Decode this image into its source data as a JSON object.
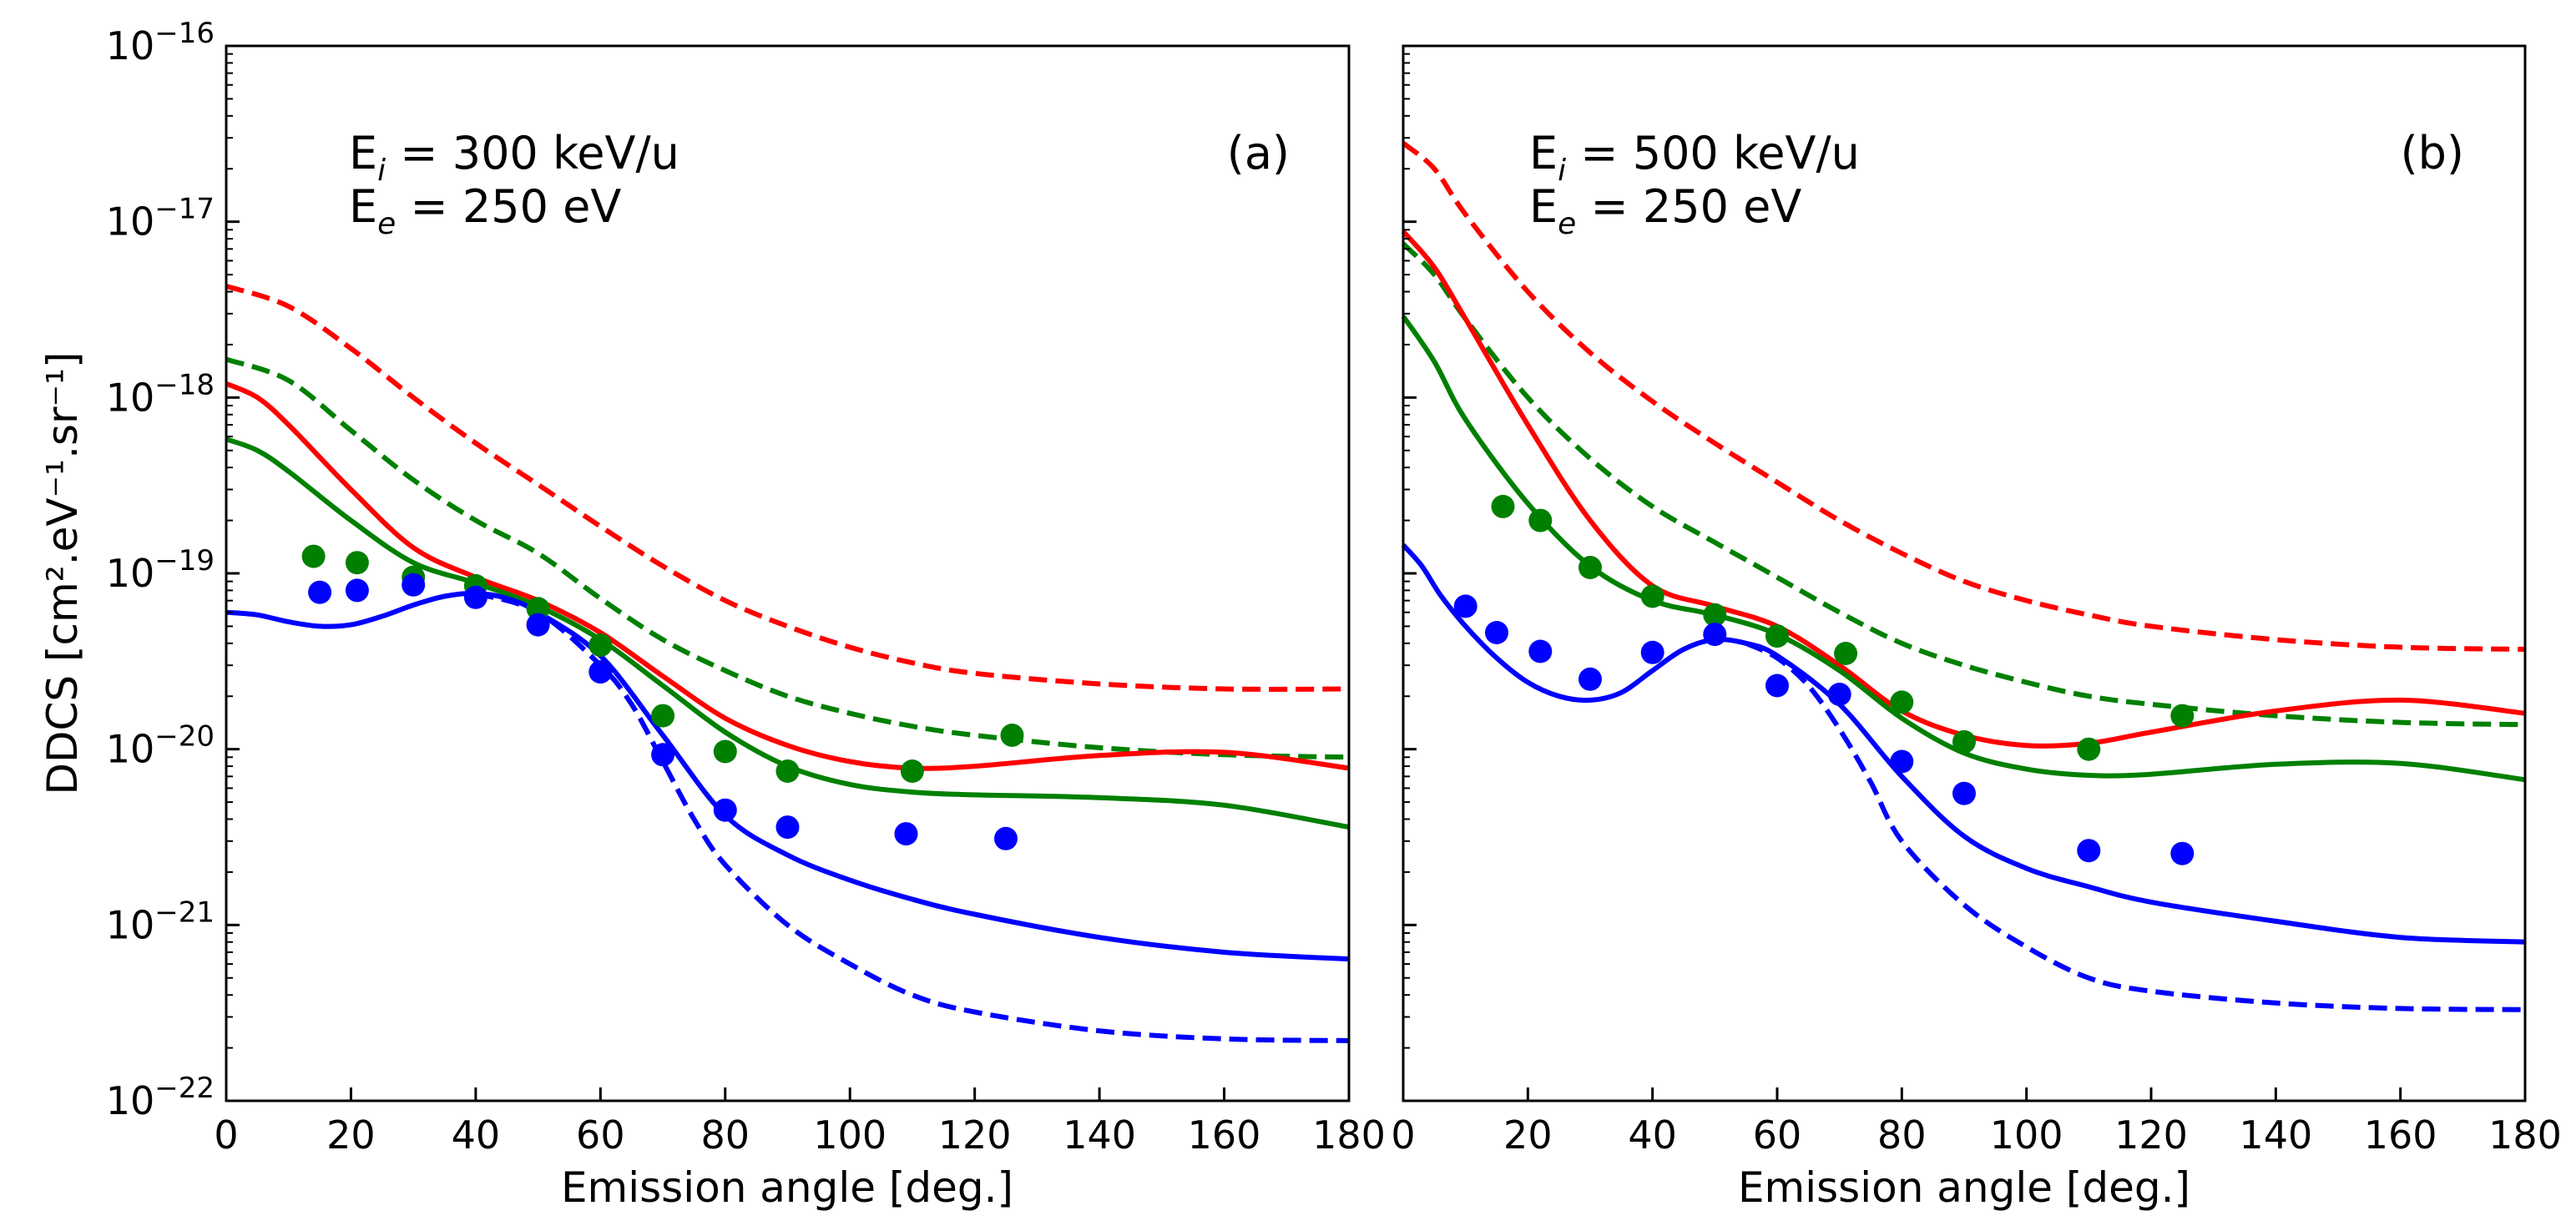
{
  "chart_data": [
    {
      "type": "line",
      "panel_label": "(a)",
      "ei_label": "300 keV/u",
      "ee_label": "250 eV",
      "xlabel": "Emission angle [deg.]",
      "ylabel": "DDCS [cm².eV⁻¹.sr⁻¹]",
      "xlim": [
        0,
        180
      ],
      "ylim": [
        1e-22,
        1e-16
      ],
      "yscale": "log",
      "x_ticks": [
        0,
        20,
        40,
        60,
        80,
        100,
        120,
        140,
        160,
        180
      ],
      "y_ticks": [
        -22,
        -21,
        -20,
        -19,
        -18,
        -17,
        -16
      ],
      "grid": false,
      "series": [
        {
          "name": "red-dashed",
          "color": "#ff0000",
          "dash": true,
          "x": [
            0,
            10,
            20,
            30,
            40,
            50,
            60,
            70,
            80,
            90,
            100,
            110,
            120,
            140,
            160,
            180
          ],
          "y": [
            4.3e-18,
            3.3e-18,
            1.9e-18,
            1e-18,
            5.5e-19,
            3.2e-19,
            1.85e-19,
            1.1e-19,
            7e-20,
            5e-20,
            3.8e-20,
            3.1e-20,
            2.7e-20,
            2.35e-20,
            2.2e-20,
            2.2e-20
          ]
        },
        {
          "name": "green-dashed",
          "color": "#008000",
          "dash": true,
          "x": [
            0,
            10,
            20,
            30,
            40,
            50,
            60,
            70,
            80,
            90,
            100,
            110,
            120,
            140,
            160,
            180
          ],
          "y": [
            1.65e-18,
            1.25e-18,
            6.5e-19,
            3.4e-19,
            2e-19,
            1.3e-19,
            7.2e-20,
            4.2e-20,
            2.8e-20,
            2e-20,
            1.6e-20,
            1.35e-20,
            1.2e-20,
            1.02e-20,
            9.3e-21,
            9e-21
          ]
        },
        {
          "name": "red-solid",
          "color": "#ff0000",
          "dash": false,
          "x": [
            0,
            5,
            10,
            20,
            30,
            40,
            50,
            60,
            70,
            80,
            90,
            100,
            110,
            120,
            140,
            160,
            180
          ],
          "y": [
            1.2e-18,
            1e-18,
            7e-19,
            3e-19,
            1.4e-19,
            9.5e-20,
            7e-20,
            4.6e-20,
            2.6e-20,
            1.5e-20,
            1.05e-20,
            8.5e-21,
            7.8e-21,
            8e-21,
            9.2e-21,
            9.6e-21,
            7.8e-21
          ]
        },
        {
          "name": "green-solid",
          "color": "#008000",
          "dash": false,
          "x": [
            0,
            5,
            10,
            20,
            30,
            40,
            50,
            60,
            70,
            80,
            90,
            100,
            110,
            120,
            140,
            160,
            180
          ],
          "y": [
            5.8e-19,
            5e-19,
            3.8e-19,
            2e-19,
            1.15e-19,
            8.8e-20,
            6.5e-20,
            4.2e-20,
            2.3e-20,
            1.25e-20,
            8e-21,
            6.3e-21,
            5.7e-21,
            5.5e-21,
            5.3e-21,
            4.8e-21,
            3.6e-21
          ]
        },
        {
          "name": "blue-solid",
          "color": "#0000ff",
          "dash": false,
          "x": [
            0,
            5,
            10,
            15,
            20,
            25,
            30,
            35,
            40,
            45,
            50,
            60,
            70,
            80,
            90,
            100,
            110,
            120,
            140,
            160,
            180
          ],
          "y": [
            6e-20,
            5.8e-20,
            5.3e-20,
            5e-20,
            5.1e-20,
            5.7e-20,
            6.6e-20,
            7.4e-20,
            7.7e-20,
            7.2e-20,
            6e-20,
            3.4e-20,
            1.2e-20,
            4.2e-21,
            2.5e-21,
            1.8e-21,
            1.4e-21,
            1.15e-21,
            8.5e-22,
            7e-22,
            6.4e-22
          ]
        },
        {
          "name": "blue-dashed",
          "color": "#0000ff",
          "dash": true,
          "x": [
            40,
            50,
            60,
            65,
            70,
            75,
            80,
            90,
            100,
            110,
            120,
            140,
            160,
            180
          ],
          "y": [
            7.7e-20,
            6e-20,
            3e-20,
            1.8e-20,
            8.5e-21,
            4e-21,
            2.2e-21,
            1e-21,
            6e-22,
            4e-22,
            3.2e-22,
            2.5e-22,
            2.25e-22,
            2.2e-22
          ]
        }
      ],
      "points": [
        {
          "name": "green-data",
          "color": "#008000",
          "x": [
            14,
            21,
            30,
            40,
            50,
            60,
            70,
            80,
            90,
            110,
            126
          ],
          "y": [
            1.25e-19,
            1.15e-19,
            9.5e-20,
            8.5e-20,
            6.3e-20,
            3.9e-20,
            1.55e-20,
            9.7e-21,
            7.5e-21,
            7.5e-21,
            1.2e-20
          ]
        },
        {
          "name": "blue-data",
          "color": "#0000ff",
          "x": [
            15,
            21,
            30,
            40,
            50,
            60,
            70,
            80,
            90,
            109,
            125
          ],
          "y": [
            7.8e-20,
            8e-20,
            8.6e-20,
            7.3e-20,
            5.1e-20,
            2.75e-20,
            9.3e-21,
            4.5e-21,
            3.6e-21,
            3.3e-21,
            3.1e-21
          ]
        }
      ]
    },
    {
      "type": "line",
      "panel_label": "(b)",
      "ei_label": "500 keV/u",
      "ee_label": "250 eV",
      "xlabel": "Emission angle [deg.]",
      "xlim": [
        0,
        180
      ],
      "ylim": [
        1e-22,
        1e-16
      ],
      "yscale": "log",
      "x_ticks": [
        0,
        20,
        40,
        60,
        80,
        100,
        120,
        140,
        160,
        180
      ],
      "y_ticks": [
        -22,
        -21,
        -20,
        -19,
        -18,
        -17,
        -16
      ],
      "grid": false,
      "series": [
        {
          "name": "red-dashed",
          "color": "#ff0000",
          "dash": true,
          "x": [
            0,
            5,
            10,
            20,
            30,
            40,
            50,
            60,
            70,
            80,
            90,
            100,
            110,
            120,
            140,
            160,
            180
          ],
          "y": [
            2.8e-17,
            2e-17,
            1.1e-17,
            4e-18,
            1.8e-18,
            9.5e-19,
            5.5e-19,
            3.3e-19,
            2e-19,
            1.3e-19,
            9e-20,
            7e-20,
            5.8e-20,
            5e-20,
            4.2e-20,
            3.8e-20,
            3.7e-20
          ]
        },
        {
          "name": "green-dashed",
          "color": "#008000",
          "dash": true,
          "x": [
            0,
            5,
            10,
            20,
            30,
            40,
            50,
            60,
            70,
            80,
            90,
            100,
            110,
            120,
            140,
            160,
            180
          ],
          "y": [
            7.5e-18,
            5e-18,
            2.8e-18,
            1e-18,
            4.5e-19,
            2.4e-19,
            1.5e-19,
            9.5e-20,
            6e-20,
            4e-20,
            3e-20,
            2.4e-20,
            2e-20,
            1.8e-20,
            1.55e-20,
            1.42e-20,
            1.38e-20
          ]
        },
        {
          "name": "red-solid",
          "color": "#ff0000",
          "dash": false,
          "x": [
            0,
            5,
            10,
            20,
            30,
            40,
            50,
            60,
            70,
            80,
            90,
            100,
            110,
            120,
            140,
            160,
            180
          ],
          "y": [
            8.8e-18,
            5.5e-18,
            2.8e-18,
            7e-19,
            2e-19,
            8.5e-20,
            6.5e-20,
            5e-20,
            3e-20,
            1.65e-20,
            1.2e-20,
            1.05e-20,
            1.08e-20,
            1.25e-20,
            1.65e-20,
            1.9e-20,
            1.6e-20
          ]
        },
        {
          "name": "green-solid",
          "color": "#008000",
          "dash": false,
          "x": [
            0,
            5,
            10,
            20,
            30,
            40,
            50,
            60,
            70,
            80,
            90,
            100,
            110,
            120,
            140,
            160,
            180
          ],
          "y": [
            2.9e-18,
            1.6e-18,
            7.5e-19,
            2.5e-19,
            1.1e-19,
            7e-20,
            5.8e-20,
            4.5e-20,
            2.8e-20,
            1.5e-20,
            9.5e-21,
            7.7e-21,
            7.1e-21,
            7.2e-21,
            8.2e-21,
            8.3e-21,
            6.7e-21
          ]
        },
        {
          "name": "blue-solid",
          "color": "#0000ff",
          "dash": false,
          "x": [
            0,
            3,
            6,
            10,
            15,
            20,
            25,
            30,
            35,
            40,
            45,
            50,
            55,
            60,
            70,
            80,
            90,
            100,
            110,
            120,
            140,
            160,
            180
          ],
          "y": [
            1.45e-19,
            1.1e-19,
            7.5e-20,
            5e-20,
            3.3e-20,
            2.4e-20,
            2e-20,
            1.9e-20,
            2.1e-20,
            2.8e-20,
            3.7e-20,
            4.2e-20,
            4e-20,
            3.4e-20,
            1.8e-20,
            7e-21,
            3.2e-21,
            2.1e-21,
            1.65e-21,
            1.35e-21,
            1.05e-21,
            8.5e-22,
            8e-22
          ]
        },
        {
          "name": "blue-dashed",
          "color": "#0000ff",
          "dash": true,
          "x": [
            55,
            60,
            65,
            70,
            75,
            80,
            90,
            100,
            110,
            120,
            140,
            160,
            180
          ],
          "y": [
            4e-20,
            3.3e-20,
            2.3e-20,
            1.3e-20,
            6.5e-21,
            3e-21,
            1.3e-21,
            7.5e-22,
            5e-22,
            4.2e-22,
            3.6e-22,
            3.35e-22,
            3.3e-22
          ]
        }
      ],
      "points": [
        {
          "name": "green-data",
          "color": "#008000",
          "x": [
            16,
            22,
            30,
            40,
            50,
            60,
            71,
            80,
            90,
            110,
            125
          ],
          "y": [
            2.4e-19,
            2e-19,
            1.08e-19,
            7.4e-20,
            5.8e-20,
            4.4e-20,
            3.5e-20,
            1.85e-20,
            1.1e-20,
            1e-20,
            1.55e-20
          ]
        },
        {
          "name": "blue-data",
          "color": "#0000ff",
          "x": [
            10,
            15,
            22,
            30,
            40,
            50,
            60,
            70,
            80,
            90,
            110,
            125
          ],
          "y": [
            6.5e-20,
            4.6e-20,
            3.6e-20,
            2.5e-20,
            3.55e-20,
            4.5e-20,
            2.3e-20,
            2.05e-20,
            8.5e-21,
            5.6e-21,
            2.65e-21,
            2.55e-21
          ]
        }
      ]
    }
  ]
}
